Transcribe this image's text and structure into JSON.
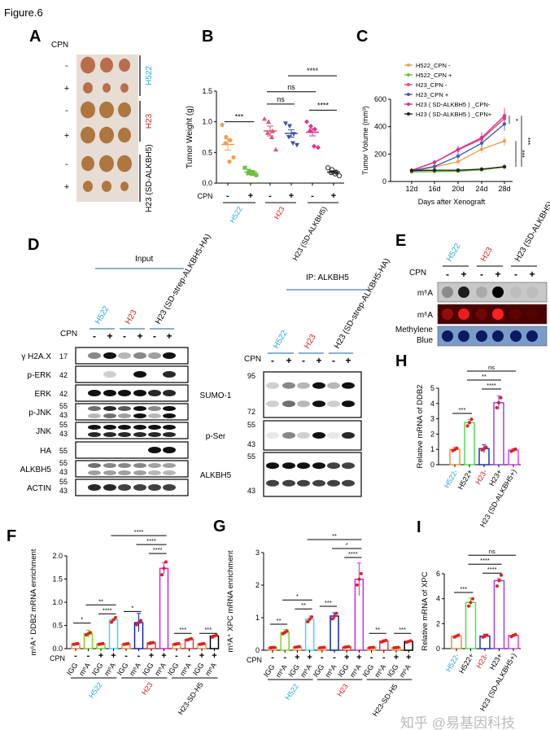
{
  "figure_title": "Figure.6",
  "colors": {
    "h522": "#2aa8d8",
    "h23": "#d42020",
    "black": "#000000"
  },
  "panel_a": {
    "label": "A",
    "cpn_label": "CPN",
    "signs": [
      "-",
      "+",
      "-",
      "+",
      "-",
      "+"
    ],
    "groups": [
      {
        "name": "H522",
        "color": "#2aa8d8"
      },
      {
        "name": "H23",
        "color": "#d42020"
      },
      {
        "name": "H23 (SD-ALKBH5)",
        "color": "#000000"
      }
    ]
  },
  "panel_b": {
    "label": "B"
  },
  "panel_c": {
    "label": "C"
  },
  "panel_d": {
    "label": "D",
    "input_label": "Input",
    "ip_label": "IP: ALKBH5",
    "cpn_label": "CPN",
    "groups": [
      {
        "name": "H522",
        "color": "#2aa8d8"
      },
      {
        "name": "H23",
        "color": "#d42020"
      },
      {
        "name": "H23 (SD-strep-ALKBH5-HA)",
        "color": "#000000"
      }
    ],
    "signs": [
      "-",
      "+",
      "-",
      "+",
      "-",
      "+"
    ],
    "input_rows": [
      {
        "name": "γ H2A.X",
        "mw": [
          "17"
        ]
      },
      {
        "name": "p-ERK",
        "mw": [
          "42"
        ]
      },
      {
        "name": "ERK",
        "mw": [
          "42"
        ]
      },
      {
        "name": "p-JNK",
        "mw": [
          "55",
          "43"
        ]
      },
      {
        "name": "JNK",
        "mw": [
          "55",
          "43"
        ]
      },
      {
        "name": "HA",
        "mw": [
          "55"
        ]
      },
      {
        "name": "ALKBH5",
        "mw": [
          "55",
          "43"
        ]
      },
      {
        "name": "ACTIN",
        "mw": [
          "55",
          "43"
        ]
      }
    ],
    "ip_rows": [
      {
        "name": "SUMO-1",
        "mw": [
          "95",
          "72"
        ]
      },
      {
        "name": "p-Ser",
        "mw": [
          "55",
          "43"
        ]
      },
      {
        "name": "ALKBH5",
        "mw": [
          "55",
          "43"
        ]
      }
    ]
  },
  "panel_e": {
    "label": "E",
    "cpn_label": "CPN",
    "groups": [
      {
        "name": "H522",
        "color": "#2aa8d8"
      },
      {
        "name": "H23",
        "color": "#d42020"
      },
      {
        "name": "H23 (SD-ALKBH5)",
        "color": "#000000"
      }
    ],
    "signs": [
      "-",
      "+",
      "-",
      "+",
      "-",
      "+"
    ],
    "rows": [
      "m⁶A",
      "m⁶A",
      "Methylene Blue"
    ],
    "dot_intensity": {
      "m6a_gray": [
        0.3,
        0.85,
        0.15,
        1.0,
        0.05,
        0.05
      ],
      "m6a_red": [
        0.4,
        0.9,
        0.2,
        1.0,
        0.1,
        0.05
      ],
      "methylene_blue": [
        1,
        1,
        1,
        1,
        1,
        1
      ]
    }
  },
  "panel_f": {
    "label": "F"
  },
  "panel_g": {
    "label": "G"
  },
  "panel_h": {
    "label": "H"
  },
  "panel_i": {
    "label": "I"
  },
  "watermark": "知乎 @易基因科技",
  "chart_data": [
    {
      "id": "B",
      "type": "scatter",
      "ylabel": "Tumor Weight (g)",
      "ylim": [
        0,
        1.5
      ],
      "yticks": [
        0,
        0.5,
        1.0,
        1.5
      ],
      "ytick_labels": [
        "0.0",
        "0.5",
        "1.0",
        "1.5"
      ],
      "row_label": "CPN",
      "signs": [
        "-",
        "+",
        "-",
        "+",
        "-",
        "+"
      ],
      "groups": [
        {
          "name": "H522",
          "color": "#2aa8d8"
        },
        {
          "name": "H23",
          "color": "#d42020"
        },
        {
          "name": "H23 (SD-ALKBH5)",
          "color": "#000000"
        }
      ],
      "series": [
        {
          "color": "#f0a050",
          "marker": "circle",
          "mean": 0.63,
          "sem": 0.09,
          "values": [
            0.95,
            0.75,
            0.7,
            0.65,
            0.35,
            0.42
          ]
        },
        {
          "color": "#6cc040",
          "marker": "square",
          "mean": 0.18,
          "sem": 0.02,
          "values": [
            0.25,
            0.2,
            0.18,
            0.16,
            0.15,
            0.13
          ]
        },
        {
          "color": "#e05070",
          "marker": "triangle",
          "mean": 0.85,
          "sem": 0.08,
          "values": [
            1.05,
            1.0,
            0.85,
            0.82,
            0.75,
            0.55
          ]
        },
        {
          "color": "#4050a0",
          "marker": "triangle-down",
          "mean": 0.81,
          "sem": 0.06,
          "values": [
            0.97,
            0.93,
            0.8,
            0.75,
            0.65,
            0.62
          ]
        },
        {
          "color": "#e03090",
          "marker": "diamond",
          "mean": 0.83,
          "sem": 0.06,
          "values": [
            1.0,
            0.93,
            0.88,
            0.85,
            0.6,
            0.58
          ]
        },
        {
          "color": "#222222",
          "marker": "open-circle",
          "mean": 0.18,
          "sem": 0.02,
          "values": [
            0.25,
            0.22,
            0.18,
            0.17,
            0.15,
            0.12
          ]
        }
      ],
      "significance": [
        {
          "from": 0,
          "to": 1,
          "y": 1.0,
          "label": "***"
        },
        {
          "from": 2,
          "to": 3,
          "y": 1.29,
          "label": "ns"
        },
        {
          "from": 2,
          "to": 4,
          "y": 1.49,
          "label": "ns"
        },
        {
          "from": 4,
          "to": 5,
          "y": 1.19,
          "label": "****"
        },
        {
          "from": 3,
          "to": 5,
          "y": 1.75,
          "label": "****"
        }
      ]
    },
    {
      "id": "C",
      "type": "line",
      "xlabel": "Days after Xenograft",
      "ylabel": "Tumor Volume (mm³)",
      "categories": [
        "12d",
        "16d",
        "20d",
        "24d",
        "28d"
      ],
      "ylim": [
        0,
        600
      ],
      "yticks": [
        0,
        200,
        400,
        600
      ],
      "legend": "top-left",
      "series": [
        {
          "name": "H522_CPN -",
          "color": "#f0a050",
          "values": [
            75,
            105,
            145,
            235,
            295
          ]
        },
        {
          "name": "H522_CPN +",
          "color": "#6cc040",
          "values": [
            70,
            72,
            75,
            85,
            105
          ]
        },
        {
          "name": "H23_CPN -",
          "color": "#e05070",
          "values": [
            80,
            140,
            230,
            310,
            460
          ]
        },
        {
          "name": "H23_CPN +",
          "color": "#4060b0",
          "values": [
            78,
            110,
            185,
            280,
            420
          ]
        },
        {
          "name": "H23 ( SD-ALKBH5 ) _CPN-",
          "color": "#e03090",
          "values": [
            82,
            140,
            235,
            320,
            480
          ]
        },
        {
          "name": "H23 ( SD-ALKBH5 ) _CPN+",
          "color": "#222222",
          "values": [
            80,
            82,
            82,
            90,
            108
          ]
        }
      ],
      "significance": [
        {
          "y_from": 420,
          "y_to": 480,
          "label": "*"
        },
        {
          "y_from": 108,
          "y_to": 295,
          "label": "***"
        },
        {
          "y_from": 108,
          "y_to": 480,
          "label": "***"
        }
      ]
    },
    {
      "id": "F",
      "type": "bar",
      "ylabel": "m⁶A⁺ DDB2 mRNA enrichment",
      "ylim": [
        0,
        2.0
      ],
      "yticks": [
        0,
        0.5,
        1.0,
        1.5,
        2.0
      ],
      "ytick_labels": [
        "0.0",
        "0.5",
        "1.0",
        "1.5",
        "2.0"
      ],
      "row_label": "CPN",
      "signs": [
        "-",
        "-",
        "+",
        "+",
        "-",
        "-",
        "+",
        "+",
        "-",
        "-",
        "+",
        "+"
      ],
      "categories": [
        "IGG",
        "m⁶A",
        "IGG",
        "m⁶A",
        "IGG",
        "m⁶A",
        "IGG",
        "m⁶A",
        "IGG",
        "m⁶A",
        "IGG",
        "m⁶A"
      ],
      "values": [
        0.1,
        0.32,
        0.1,
        0.62,
        0.1,
        0.56,
        0.12,
        1.73,
        0.1,
        0.2,
        0.1,
        0.27
      ],
      "errors": [
        0.01,
        0.08,
        0.01,
        0.03,
        0.01,
        0.2,
        0.03,
        0.12,
        0.01,
        0.01,
        0.01,
        0.02
      ],
      "colors": [
        "#f09040",
        "#7ed321",
        "#7ed321",
        "#40d8e8",
        "#f09040",
        "#1020c0",
        "#e04040",
        "#e020e0",
        "#f09040",
        "#e04040",
        "#f09040",
        "#000000"
      ],
      "groups": [
        {
          "name": "H522",
          "color": "#2aa8d8"
        },
        {
          "name": "H23",
          "color": "#d42020"
        },
        {
          "name": "H23-SD-H5",
          "color": "#000000"
        }
      ],
      "significance": [
        {
          "from": 0,
          "to": 1,
          "y": 0.55,
          "label": "*"
        },
        {
          "from": 1,
          "to": 3,
          "y": 0.91,
          "label": "**"
        },
        {
          "from": 2,
          "to": 3,
          "y": 0.75,
          "label": "****"
        },
        {
          "from": 4,
          "to": 5,
          "y": 0.8,
          "label": "*"
        },
        {
          "from": 3,
          "to": 7,
          "y": 2.35,
          "label": "****"
        },
        {
          "from": 5,
          "to": 7,
          "y": 2.17,
          "label": "****"
        },
        {
          "from": 6,
          "to": 7,
          "y": 2.05,
          "label": "****"
        },
        {
          "from": 8,
          "to": 9,
          "y": 0.33,
          "label": "***"
        },
        {
          "from": 10,
          "to": 11,
          "y": 0.33,
          "label": "***"
        }
      ]
    },
    {
      "id": "G",
      "type": "bar",
      "ylabel": "m⁶A⁺ XPC mRNA enrichment",
      "ylim": [
        0,
        3
      ],
      "yticks": [
        0,
        1,
        2,
        3
      ],
      "ytick_labels": [
        "0",
        "1",
        "2",
        "3"
      ],
      "row_label": "CPN",
      "signs": [
        "-",
        "-",
        "+",
        "+",
        "-",
        "-",
        "+",
        "+",
        "-",
        "-",
        "+",
        "+"
      ],
      "categories": [
        "IGG",
        "m⁶A",
        "IGG",
        "m⁶A",
        "IGG",
        "m⁶A",
        "IGG",
        "m⁶A",
        "IGG",
        "m⁶A",
        "IGG",
        "m⁶A"
      ],
      "values": [
        0.08,
        0.55,
        0.1,
        0.95,
        0.08,
        1.05,
        0.1,
        2.18,
        0.08,
        0.28,
        0.08,
        0.27
      ],
      "errors": [
        0.01,
        0.08,
        0.02,
        0.1,
        0.01,
        0.1,
        0.02,
        0.5,
        0.01,
        0.04,
        0.01,
        0.02
      ],
      "colors": [
        "#f09040",
        "#7ed321",
        "#f09040",
        "#40d8e8",
        "#f09040",
        "#1020c0",
        "#e04040",
        "#e020e0",
        "#f09040",
        "#e04040",
        "#f09040",
        "#000000"
      ],
      "groups": [
        {
          "name": "H522",
          "color": "#2aa8d8"
        },
        {
          "name": "H23",
          "color": "#d42020"
        },
        {
          "name": "H23-SD-H5",
          "color": "#000000"
        }
      ],
      "significance": [
        {
          "from": 0,
          "to": 1,
          "y": 0.8,
          "label": "**"
        },
        {
          "from": 1,
          "to": 3,
          "y": 1.52,
          "label": "*"
        },
        {
          "from": 2,
          "to": 3,
          "y": 1.27,
          "label": "**"
        },
        {
          "from": 4,
          "to": 5,
          "y": 1.35,
          "label": "***"
        },
        {
          "from": 3,
          "to": 7,
          "y": 3.35,
          "label": "**"
        },
        {
          "from": 5,
          "to": 7,
          "y": 3.1,
          "label": "*"
        },
        {
          "from": 6,
          "to": 7,
          "y": 2.85,
          "label": "****"
        },
        {
          "from": 8,
          "to": 9,
          "y": 0.52,
          "label": "**"
        },
        {
          "from": 10,
          "to": 11,
          "y": 0.52,
          "label": "***"
        }
      ]
    },
    {
      "id": "H",
      "type": "bar",
      "ylabel": "Relative mRNA of DDB2",
      "ylim": [
        0,
        5
      ],
      "yticks": [
        0,
        1,
        2,
        3,
        4,
        5
      ],
      "ytick_labels": [
        "0",
        "1",
        "2",
        "3",
        "4",
        "5"
      ],
      "categories": [
        "H522-",
        "H522+",
        "H23-",
        "H23+",
        "H23 (SD-ALKBH5+)"
      ],
      "category_colors": [
        "#2aa8d8",
        "#000000",
        "#d42020",
        "#000000",
        "#000000"
      ],
      "values": [
        1.0,
        2.75,
        1.05,
        4.05,
        0.95
      ],
      "errors": [
        0.15,
        0.2,
        0.25,
        0.45,
        0.1
      ],
      "colors": [
        "#f09040",
        "#50e050",
        "#2030c0",
        "#a040e0",
        "#e040e0"
      ],
      "significance": [
        {
          "from": 0,
          "to": 1,
          "y": 3.35,
          "label": "***"
        },
        {
          "from": 2,
          "to": 3,
          "y": 4.95,
          "label": "****"
        },
        {
          "from": 1,
          "to": 3,
          "y": 5.4,
          "label": "**"
        },
        {
          "from": 1,
          "to": 4,
          "y": 5.8,
          "label": "ns"
        }
      ]
    },
    {
      "id": "I",
      "type": "bar",
      "ylabel": "Relative mRNA of XPC",
      "ylim": [
        0,
        6
      ],
      "yticks": [
        0,
        2,
        4,
        6
      ],
      "ytick_labels": [
        "0",
        "2",
        "4",
        "6"
      ],
      "categories": [
        "H522-",
        "H522+",
        "H23-",
        "H23+",
        "H23 (SD-ALKBH5+)"
      ],
      "category_colors": [
        "#2aa8d8",
        "#000000",
        "#d42020",
        "#000000",
        "#000000"
      ],
      "values": [
        1.0,
        3.7,
        1.0,
        5.45,
        1.05
      ],
      "errors": [
        0.05,
        0.35,
        0.15,
        0.15,
        0.05
      ],
      "colors": [
        "#f09040",
        "#50e050",
        "#2030c0",
        "#a040e0",
        "#e040e0"
      ],
      "significance": [
        {
          "from": 0,
          "to": 1,
          "y": 4.5,
          "label": "***"
        },
        {
          "from": 2,
          "to": 3,
          "y": 6.05,
          "label": "****"
        },
        {
          "from": 1,
          "to": 3,
          "y": 6.6,
          "label": "****"
        },
        {
          "from": 1,
          "to": 4,
          "y": 7.2,
          "label": "ns"
        }
      ]
    }
  ]
}
